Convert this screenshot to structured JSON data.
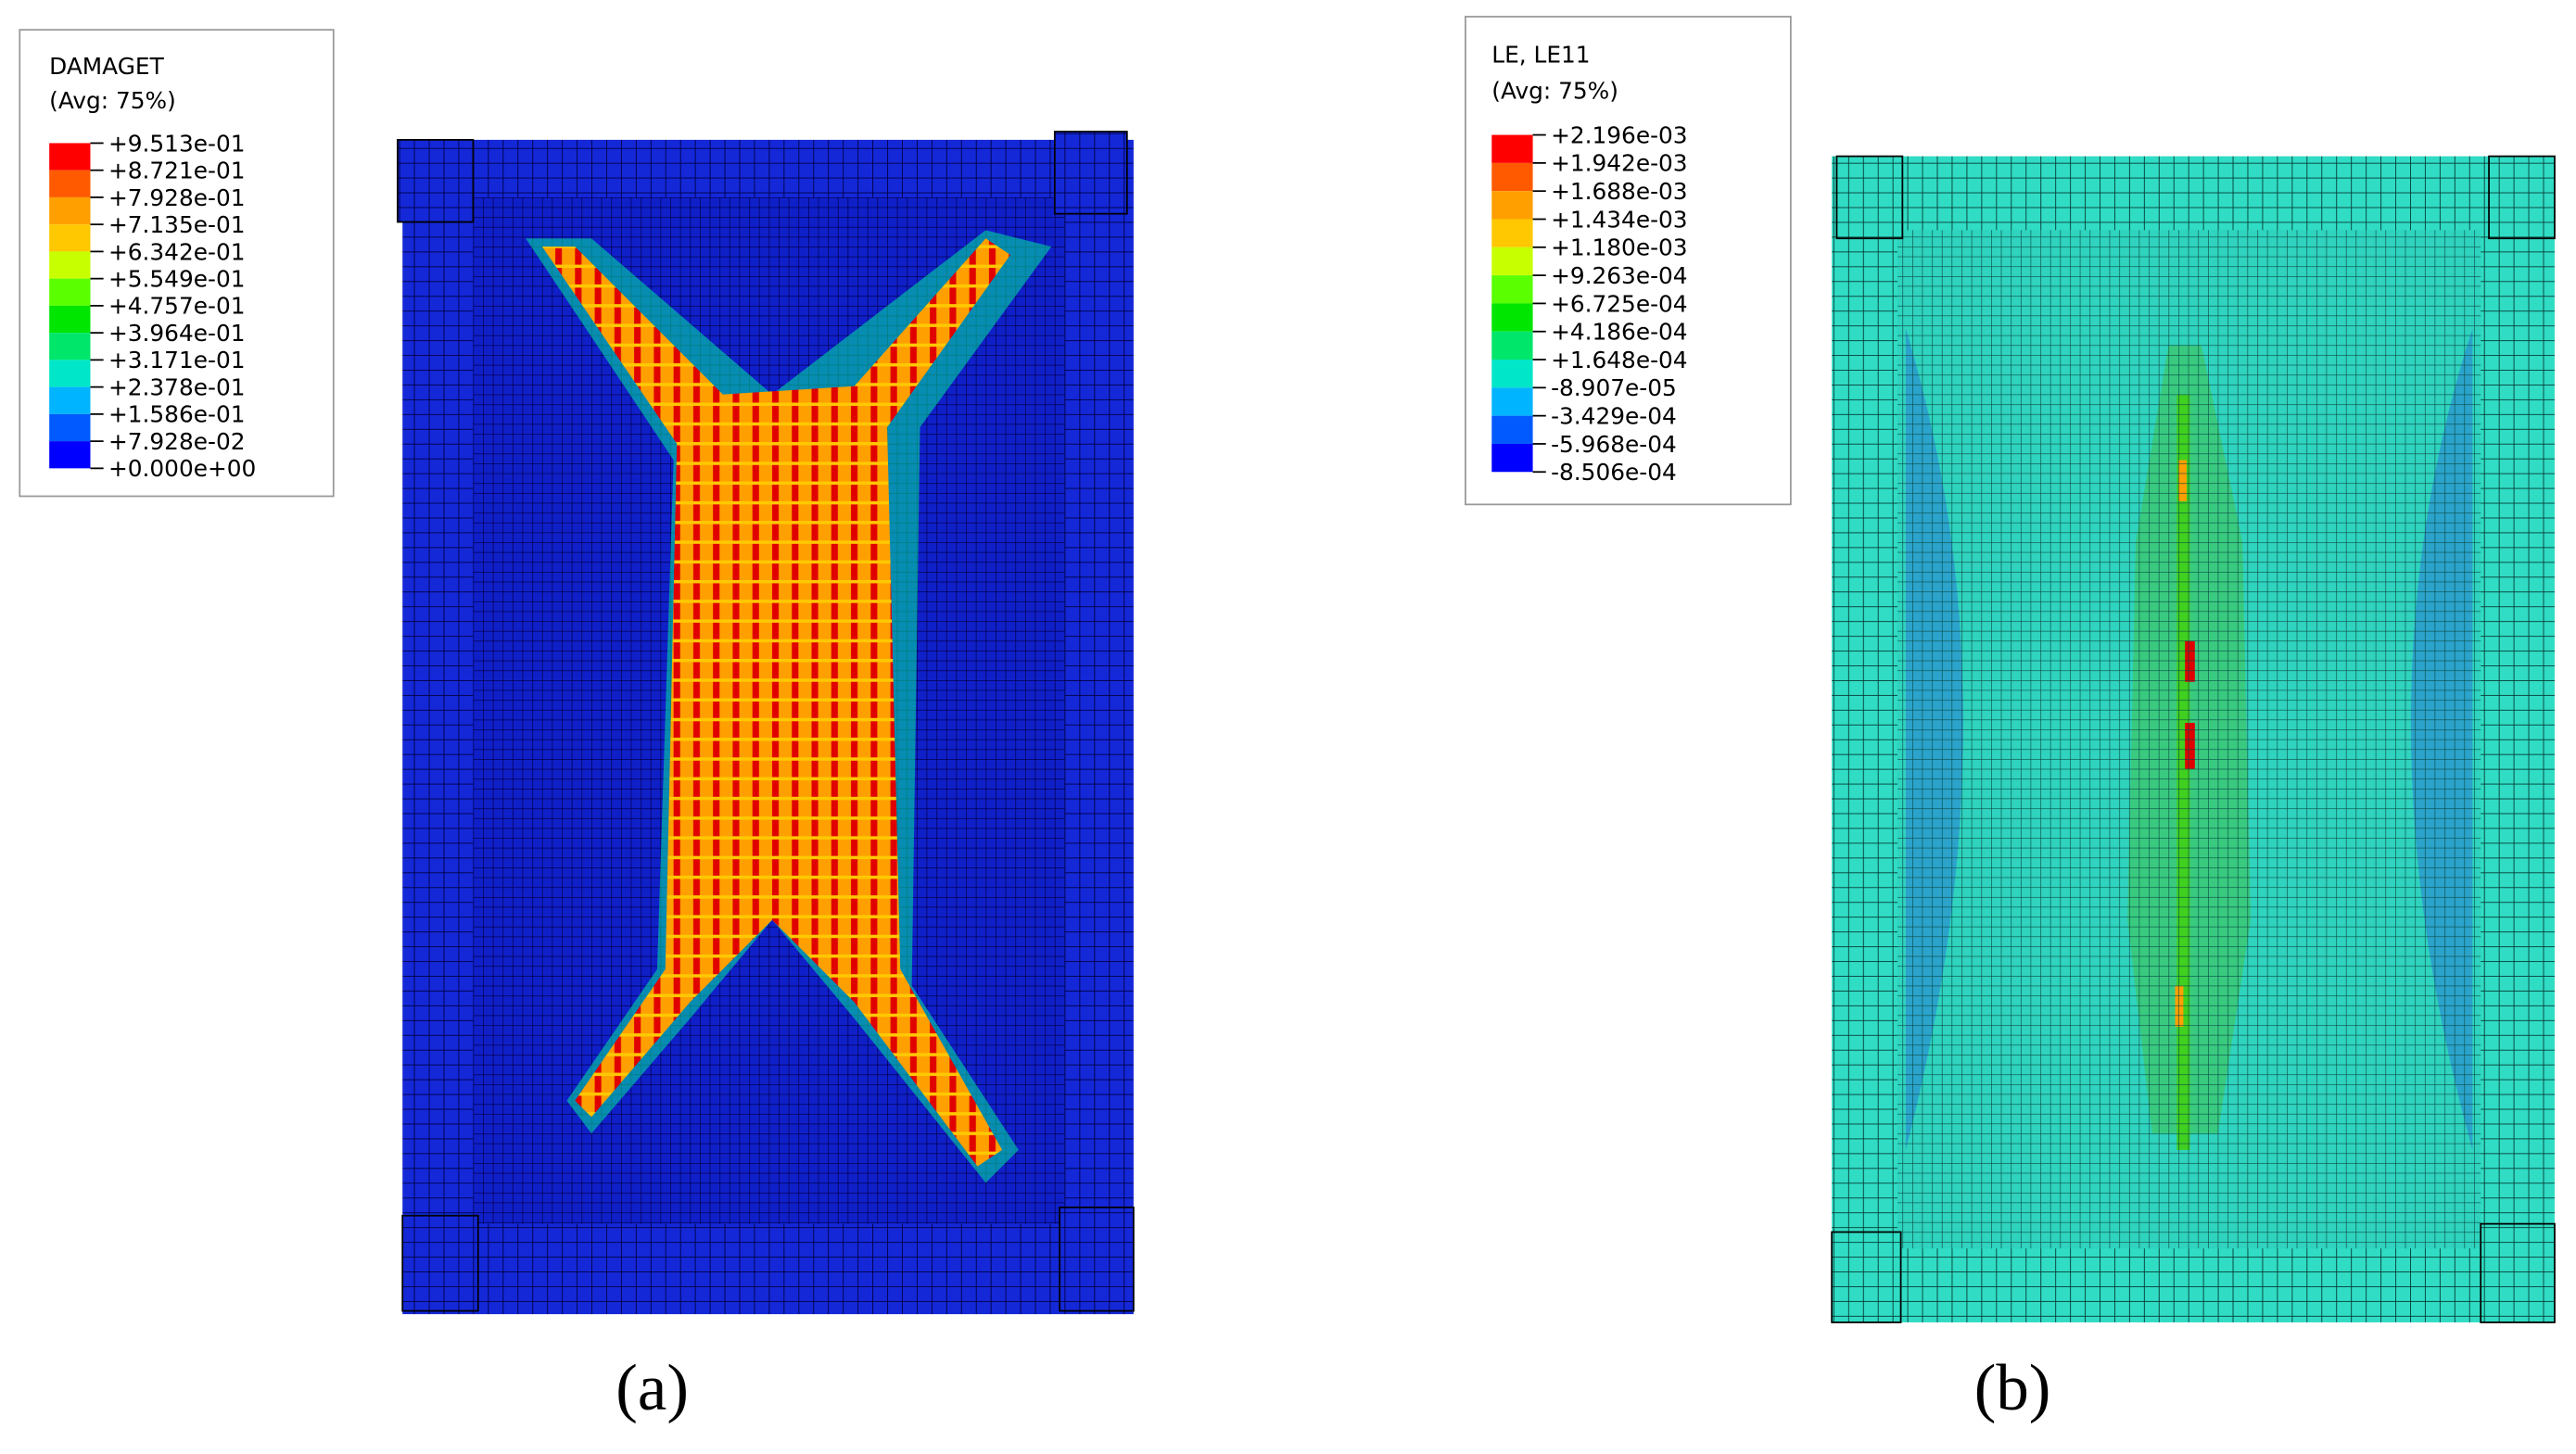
{
  "panels": [
    {
      "label": "(a)",
      "legend": {
        "title": "DAMAGET",
        "subtitle": "(Avg: 75%)",
        "levels": [
          "+9.513e-01",
          "+8.721e-01",
          "+7.928e-01",
          "+7.135e-01",
          "+6.342e-01",
          "+5.549e-01",
          "+4.757e-01",
          "+3.964e-01",
          "+3.171e-01",
          "+2.378e-01",
          "+1.586e-01",
          "+7.928e-02",
          "+0.000e+00"
        ]
      }
    },
    {
      "label": "(b)",
      "legend": {
        "title": "LE, LE11",
        "subtitle": "(Avg: 75%)",
        "levels": [
          "+2.196e-03",
          "+1.942e-03",
          "+1.688e-03",
          "+1.434e-03",
          "+1.180e-03",
          "+9.263e-04",
          "+6.725e-04",
          "+4.186e-04",
          "+1.648e-04",
          "-8.907e-05",
          "-3.429e-04",
          "-5.968e-04",
          "-8.506e-04"
        ]
      }
    }
  ]
}
